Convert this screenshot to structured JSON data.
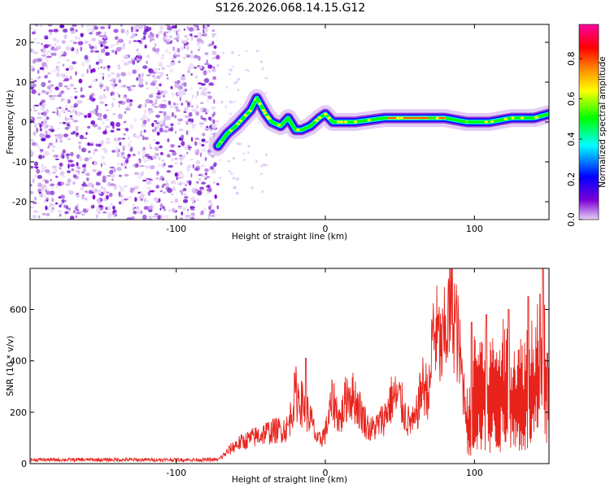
{
  "title": "S126.2026.068.14.15.G12",
  "chart_data": [
    {
      "type": "heatmap",
      "name": "spectrogram",
      "xlabel": "Height of straight line (km)",
      "ylabel": "Frequency (Hz)",
      "xlim": [
        -198,
        150
      ],
      "ylim": [
        -24.5,
        24.5
      ],
      "xticks": [
        -100,
        0,
        100
      ],
      "yticks": [
        -20,
        -10,
        0,
        10,
        20
      ],
      "colorbar": {
        "label": "Normalized spectral amplitude",
        "range": [
          0,
          0.97
        ],
        "ticks": [
          0.0,
          0.2,
          0.4,
          0.6,
          0.8
        ],
        "colormap": [
          "#e6d0f5",
          "#7b00d6",
          "#0000ff",
          "#00ffff",
          "#00ff00",
          "#ffff00",
          "#ff7f00",
          "#ff0000",
          "#ff00a0"
        ]
      },
      "noise_region_x": [
        -198,
        -72
      ],
      "ridge": [
        {
          "x": -72,
          "y": -6
        },
        {
          "x": -66,
          "y": -3
        },
        {
          "x": -60,
          "y": -1
        },
        {
          "x": -55,
          "y": 1
        },
        {
          "x": -50,
          "y": 3
        },
        {
          "x": -46,
          "y": 6
        },
        {
          "x": -43,
          "y": 4
        },
        {
          "x": -40,
          "y": 2
        },
        {
          "x": -36,
          "y": 0
        },
        {
          "x": -30,
          "y": -1
        },
        {
          "x": -25,
          "y": 1
        },
        {
          "x": -20,
          "y": -2
        },
        {
          "x": -16,
          "y": -2
        },
        {
          "x": -10,
          "y": -1
        },
        {
          "x": -4,
          "y": 1
        },
        {
          "x": 0,
          "y": 2
        },
        {
          "x": 5,
          "y": 0
        },
        {
          "x": 20,
          "y": 0
        },
        {
          "x": 40,
          "y": 1
        },
        {
          "x": 60,
          "y": 1
        },
        {
          "x": 80,
          "y": 1
        },
        {
          "x": 95,
          "y": 0
        },
        {
          "x": 110,
          "y": 0
        },
        {
          "x": 125,
          "y": 1
        },
        {
          "x": 140,
          "y": 1
        },
        {
          "x": 150,
          "y": 2
        }
      ]
    },
    {
      "type": "line",
      "name": "snr",
      "xlabel": "Height of straight line (km)",
      "ylabel": "SNR (10 * v/v)",
      "xlim": [
        -198,
        150
      ],
      "ylim": [
        0,
        760
      ],
      "xticks": [
        -100,
        0,
        100
      ],
      "yticks": [
        0,
        200,
        400,
        600
      ],
      "color": "#e8231c",
      "envelope": [
        {
          "x": -198,
          "y": 15
        },
        {
          "x": -100,
          "y": 15
        },
        {
          "x": -72,
          "y": 15
        },
        {
          "x": -60,
          "y": 80
        },
        {
          "x": -40,
          "y": 130
        },
        {
          "x": -25,
          "y": 150
        },
        {
          "x": -20,
          "y": 300
        },
        {
          "x": -10,
          "y": 190
        },
        {
          "x": -5,
          "y": 90
        },
        {
          "x": 0,
          "y": 130
        },
        {
          "x": 5,
          "y": 270
        },
        {
          "x": 10,
          "y": 180
        },
        {
          "x": 15,
          "y": 300
        },
        {
          "x": 20,
          "y": 270
        },
        {
          "x": 25,
          "y": 200
        },
        {
          "x": 30,
          "y": 140
        },
        {
          "x": 35,
          "y": 160
        },
        {
          "x": 40,
          "y": 200
        },
        {
          "x": 45,
          "y": 280
        },
        {
          "x": 50,
          "y": 270
        },
        {
          "x": 55,
          "y": 180
        },
        {
          "x": 60,
          "y": 170
        },
        {
          "x": 65,
          "y": 330
        },
        {
          "x": 70,
          "y": 300
        },
        {
          "x": 72,
          "y": 560
        },
        {
          "x": 75,
          "y": 540
        },
        {
          "x": 78,
          "y": 470
        },
        {
          "x": 82,
          "y": 600
        },
        {
          "x": 85,
          "y": 680
        },
        {
          "x": 88,
          "y": 570
        },
        {
          "x": 92,
          "y": 350
        },
        {
          "x": 96,
          "y": 160
        },
        {
          "x": 100,
          "y": 380
        },
        {
          "x": 110,
          "y": 340
        },
        {
          "x": 120,
          "y": 380
        },
        {
          "x": 130,
          "y": 330
        },
        {
          "x": 140,
          "y": 420
        },
        {
          "x": 145,
          "y": 500
        },
        {
          "x": 150,
          "y": 360
        }
      ],
      "spikes": [
        {
          "x": -13,
          "y": 410
        },
        {
          "x": 98,
          "y": 550
        },
        {
          "x": 108,
          "y": 580
        },
        {
          "x": 123,
          "y": 600
        },
        {
          "x": 136,
          "y": 650
        },
        {
          "x": 144,
          "y": 660
        },
        {
          "x": 146,
          "y": 760
        },
        {
          "x": 149,
          "y": 430
        }
      ]
    }
  ]
}
